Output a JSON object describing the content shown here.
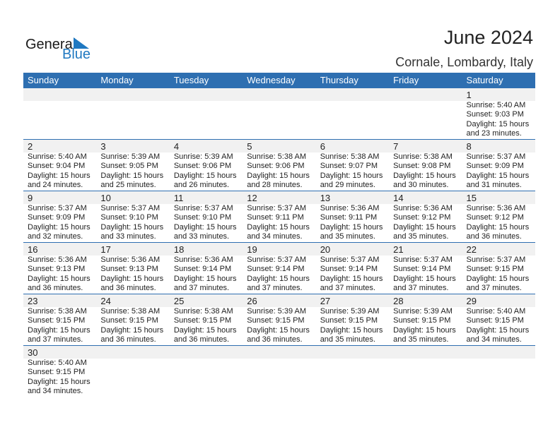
{
  "logo": {
    "text1": "General",
    "text2": "Blue",
    "accent": "#1f78c1"
  },
  "header": {
    "title": "June 2024",
    "location": "Cornale, Lombardy, Italy"
  },
  "weekdays": [
    "Sunday",
    "Monday",
    "Tuesday",
    "Wednesday",
    "Thursday",
    "Friday",
    "Saturday"
  ],
  "colors": {
    "header_bg": "#2e6fb1",
    "date_band": "#f1f1f1"
  },
  "weeks": [
    [
      null,
      null,
      null,
      null,
      null,
      null,
      {
        "day": "1",
        "sunrise": "Sunrise: 5:40 AM",
        "sunset": "Sunset: 9:03 PM",
        "daylight": "Daylight: 15 hours",
        "minutes": "and 23 minutes."
      }
    ],
    [
      {
        "day": "2",
        "sunrise": "Sunrise: 5:40 AM",
        "sunset": "Sunset: 9:04 PM",
        "daylight": "Daylight: 15 hours",
        "minutes": "and 24 minutes."
      },
      {
        "day": "3",
        "sunrise": "Sunrise: 5:39 AM",
        "sunset": "Sunset: 9:05 PM",
        "daylight": "Daylight: 15 hours",
        "minutes": "and 25 minutes."
      },
      {
        "day": "4",
        "sunrise": "Sunrise: 5:39 AM",
        "sunset": "Sunset: 9:06 PM",
        "daylight": "Daylight: 15 hours",
        "minutes": "and 26 minutes."
      },
      {
        "day": "5",
        "sunrise": "Sunrise: 5:38 AM",
        "sunset": "Sunset: 9:06 PM",
        "daylight": "Daylight: 15 hours",
        "minutes": "and 28 minutes."
      },
      {
        "day": "6",
        "sunrise": "Sunrise: 5:38 AM",
        "sunset": "Sunset: 9:07 PM",
        "daylight": "Daylight: 15 hours",
        "minutes": "and 29 minutes."
      },
      {
        "day": "7",
        "sunrise": "Sunrise: 5:38 AM",
        "sunset": "Sunset: 9:08 PM",
        "daylight": "Daylight: 15 hours",
        "minutes": "and 30 minutes."
      },
      {
        "day": "8",
        "sunrise": "Sunrise: 5:37 AM",
        "sunset": "Sunset: 9:09 PM",
        "daylight": "Daylight: 15 hours",
        "minutes": "and 31 minutes."
      }
    ],
    [
      {
        "day": "9",
        "sunrise": "Sunrise: 5:37 AM",
        "sunset": "Sunset: 9:09 PM",
        "daylight": "Daylight: 15 hours",
        "minutes": "and 32 minutes."
      },
      {
        "day": "10",
        "sunrise": "Sunrise: 5:37 AM",
        "sunset": "Sunset: 9:10 PM",
        "daylight": "Daylight: 15 hours",
        "minutes": "and 33 minutes."
      },
      {
        "day": "11",
        "sunrise": "Sunrise: 5:37 AM",
        "sunset": "Sunset: 9:10 PM",
        "daylight": "Daylight: 15 hours",
        "minutes": "and 33 minutes."
      },
      {
        "day": "12",
        "sunrise": "Sunrise: 5:37 AM",
        "sunset": "Sunset: 9:11 PM",
        "daylight": "Daylight: 15 hours",
        "minutes": "and 34 minutes."
      },
      {
        "day": "13",
        "sunrise": "Sunrise: 5:36 AM",
        "sunset": "Sunset: 9:11 PM",
        "daylight": "Daylight: 15 hours",
        "minutes": "and 35 minutes."
      },
      {
        "day": "14",
        "sunrise": "Sunrise: 5:36 AM",
        "sunset": "Sunset: 9:12 PM",
        "daylight": "Daylight: 15 hours",
        "minutes": "and 35 minutes."
      },
      {
        "day": "15",
        "sunrise": "Sunrise: 5:36 AM",
        "sunset": "Sunset: 9:12 PM",
        "daylight": "Daylight: 15 hours",
        "minutes": "and 36 minutes."
      }
    ],
    [
      {
        "day": "16",
        "sunrise": "Sunrise: 5:36 AM",
        "sunset": "Sunset: 9:13 PM",
        "daylight": "Daylight: 15 hours",
        "minutes": "and 36 minutes."
      },
      {
        "day": "17",
        "sunrise": "Sunrise: 5:36 AM",
        "sunset": "Sunset: 9:13 PM",
        "daylight": "Daylight: 15 hours",
        "minutes": "and 36 minutes."
      },
      {
        "day": "18",
        "sunrise": "Sunrise: 5:36 AM",
        "sunset": "Sunset: 9:14 PM",
        "daylight": "Daylight: 15 hours",
        "minutes": "and 37 minutes."
      },
      {
        "day": "19",
        "sunrise": "Sunrise: 5:37 AM",
        "sunset": "Sunset: 9:14 PM",
        "daylight": "Daylight: 15 hours",
        "minutes": "and 37 minutes."
      },
      {
        "day": "20",
        "sunrise": "Sunrise: 5:37 AM",
        "sunset": "Sunset: 9:14 PM",
        "daylight": "Daylight: 15 hours",
        "minutes": "and 37 minutes."
      },
      {
        "day": "21",
        "sunrise": "Sunrise: 5:37 AM",
        "sunset": "Sunset: 9:14 PM",
        "daylight": "Daylight: 15 hours",
        "minutes": "and 37 minutes."
      },
      {
        "day": "22",
        "sunrise": "Sunrise: 5:37 AM",
        "sunset": "Sunset: 9:15 PM",
        "daylight": "Daylight: 15 hours",
        "minutes": "and 37 minutes."
      }
    ],
    [
      {
        "day": "23",
        "sunrise": "Sunrise: 5:38 AM",
        "sunset": "Sunset: 9:15 PM",
        "daylight": "Daylight: 15 hours",
        "minutes": "and 37 minutes."
      },
      {
        "day": "24",
        "sunrise": "Sunrise: 5:38 AM",
        "sunset": "Sunset: 9:15 PM",
        "daylight": "Daylight: 15 hours",
        "minutes": "and 36 minutes."
      },
      {
        "day": "25",
        "sunrise": "Sunrise: 5:38 AM",
        "sunset": "Sunset: 9:15 PM",
        "daylight": "Daylight: 15 hours",
        "minutes": "and 36 minutes."
      },
      {
        "day": "26",
        "sunrise": "Sunrise: 5:39 AM",
        "sunset": "Sunset: 9:15 PM",
        "daylight": "Daylight: 15 hours",
        "minutes": "and 36 minutes."
      },
      {
        "day": "27",
        "sunrise": "Sunrise: 5:39 AM",
        "sunset": "Sunset: 9:15 PM",
        "daylight": "Daylight: 15 hours",
        "minutes": "and 35 minutes."
      },
      {
        "day": "28",
        "sunrise": "Sunrise: 5:39 AM",
        "sunset": "Sunset: 9:15 PM",
        "daylight": "Daylight: 15 hours",
        "minutes": "and 35 minutes."
      },
      {
        "day": "29",
        "sunrise": "Sunrise: 5:40 AM",
        "sunset": "Sunset: 9:15 PM",
        "daylight": "Daylight: 15 hours",
        "minutes": "and 34 minutes."
      }
    ],
    [
      {
        "day": "30",
        "sunrise": "Sunrise: 5:40 AM",
        "sunset": "Sunset: 9:15 PM",
        "daylight": "Daylight: 15 hours",
        "minutes": "and 34 minutes."
      },
      null,
      null,
      null,
      null,
      null,
      null
    ]
  ]
}
